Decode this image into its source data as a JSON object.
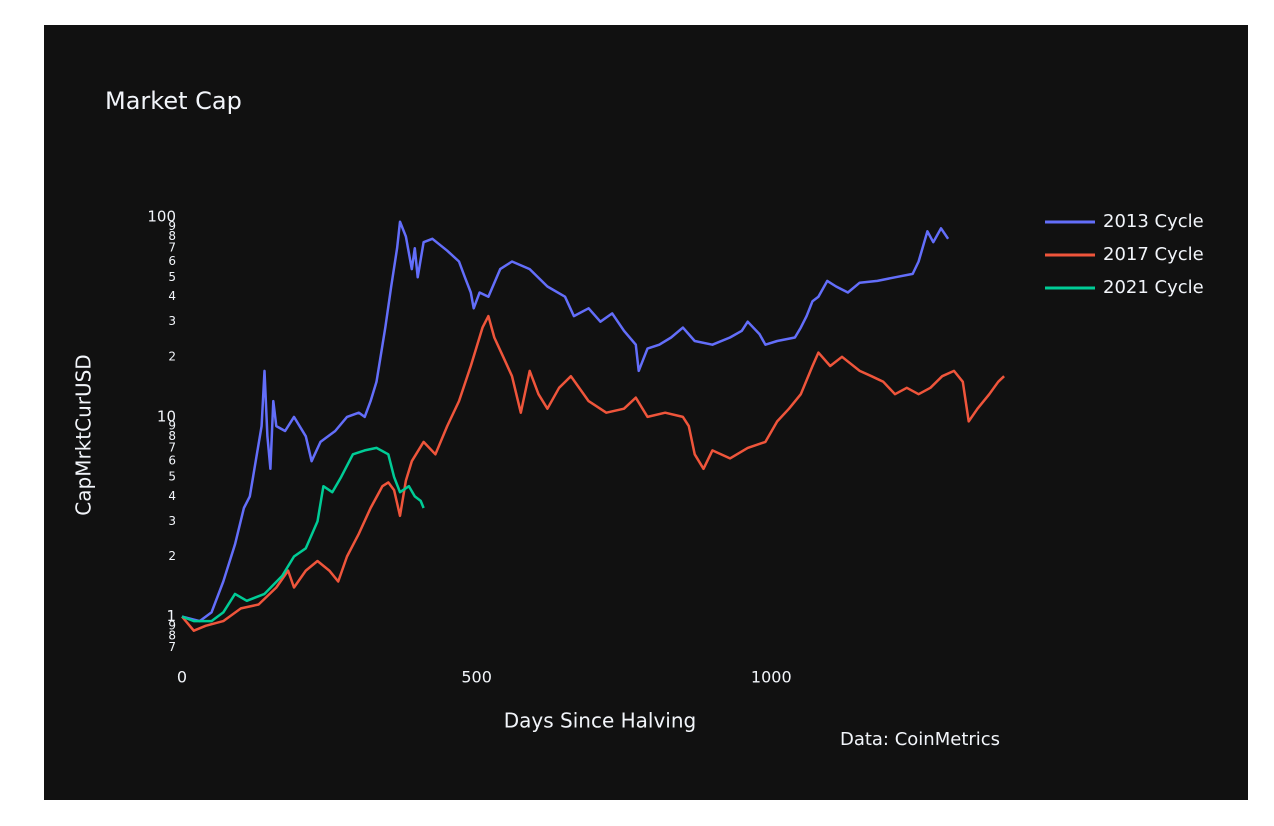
{
  "chart_data": {
    "type": "line",
    "title": "Market Cap",
    "xlabel": "Days Since Halving",
    "ylabel": "CapMrktCurUSD",
    "annotation": "Data: CoinMetrics",
    "log_y": true,
    "grid": false,
    "legend": "upper right",
    "xlim": [
      0,
      1400
    ],
    "xticks": [
      0,
      500,
      1000
    ],
    "ylim": [
      0.65,
      105
    ],
    "yticks": [
      {
        "value": 0.7,
        "label": "7"
      },
      {
        "value": 0.8,
        "label": "8"
      },
      {
        "value": 0.9,
        "label": "9"
      },
      1,
      2,
      3,
      4,
      5,
      6,
      7,
      8,
      9,
      10,
      {
        "value": 20,
        "label": "2"
      },
      {
        "value": 30,
        "label": "3"
      },
      {
        "value": 40,
        "label": "4"
      },
      {
        "value": 50,
        "label": "5"
      },
      {
        "value": 60,
        "label": "6"
      },
      {
        "value": 70,
        "label": "7"
      },
      {
        "value": 80,
        "label": "8"
      },
      {
        "value": 90,
        "label": "9"
      },
      100
    ],
    "series": [
      {
        "name": "2013 Cycle",
        "color": "#636efa",
        "x": [
          0,
          30,
          50,
          70,
          90,
          105,
          115,
          125,
          135,
          140,
          145,
          150,
          155,
          160,
          175,
          190,
          210,
          220,
          235,
          260,
          280,
          300,
          310,
          320,
          330,
          345,
          355,
          365,
          370,
          380,
          390,
          395,
          400,
          410,
          425,
          450,
          470,
          480,
          490,
          495,
          505,
          520,
          540,
          560,
          590,
          620,
          650,
          665,
          690,
          710,
          730,
          750,
          770,
          775,
          790,
          810,
          830,
          850,
          870,
          900,
          930,
          950,
          960,
          980,
          990,
          1010,
          1040,
          1050,
          1060,
          1070,
          1080,
          1095,
          1110,
          1130,
          1150,
          1180,
          1210,
          1240,
          1250,
          1265,
          1275,
          1288,
          1300
        ],
        "values": [
          1,
          0.95,
          1.05,
          1.5,
          2.3,
          3.5,
          4,
          6,
          9,
          17,
          8,
          5.5,
          12,
          9,
          8.5,
          10,
          8,
          6,
          7.5,
          8.5,
          10,
          10.5,
          10,
          12,
          15,
          28,
          45,
          70,
          95,
          80,
          55,
          70,
          50,
          75,
          78,
          68,
          60,
          50,
          42,
          35,
          42,
          40,
          55,
          60,
          55,
          45,
          40,
          32,
          35,
          30,
          33,
          27,
          23,
          17,
          22,
          23,
          25,
          28,
          24,
          23,
          25,
          27,
          30,
          26,
          23,
          24,
          25,
          28,
          32,
          38,
          40,
          48,
          45,
          42,
          47,
          48,
          50,
          52,
          60,
          85,
          75,
          88,
          78
        ]
      },
      {
        "name": "2017 Cycle",
        "color": "#ef553b",
        "x": [
          0,
          20,
          40,
          70,
          100,
          130,
          160,
          180,
          190,
          210,
          230,
          250,
          265,
          280,
          300,
          320,
          340,
          350,
          360,
          370,
          380,
          390,
          410,
          430,
          450,
          470,
          490,
          510,
          520,
          530,
          545,
          560,
          575,
          590,
          605,
          620,
          640,
          660,
          690,
          720,
          750,
          770,
          790,
          820,
          850,
          860,
          870,
          885,
          900,
          930,
          960,
          990,
          1010,
          1030,
          1050,
          1070,
          1080,
          1100,
          1120,
          1150,
          1170,
          1190,
          1210,
          1230,
          1250,
          1270,
          1290,
          1310,
          1325,
          1335,
          1350,
          1370,
          1385,
          1395
        ],
        "values": [
          1,
          0.85,
          0.9,
          0.95,
          1.1,
          1.15,
          1.4,
          1.7,
          1.4,
          1.7,
          1.9,
          1.7,
          1.5,
          2,
          2.6,
          3.5,
          4.5,
          4.7,
          4.3,
          3.2,
          4.8,
          6,
          7.5,
          6.5,
          9,
          12,
          18,
          28,
          32,
          25,
          20,
          16,
          10.5,
          17,
          13,
          11,
          14,
          16,
          12,
          10.5,
          11,
          12.5,
          10,
          10.5,
          10,
          9,
          6.5,
          5.5,
          6.8,
          6.2,
          7,
          7.5,
          9.5,
          11,
          13,
          18,
          21,
          18,
          20,
          17,
          16,
          15,
          13,
          14,
          13,
          14,
          16,
          17,
          15,
          9.5,
          11,
          13,
          15,
          16
        ]
      },
      {
        "name": "2021 Cycle",
        "color": "#00cc96",
        "x": [
          0,
          20,
          50,
          70,
          90,
          110,
          140,
          170,
          190,
          210,
          230,
          240,
          255,
          270,
          290,
          310,
          330,
          350,
          360,
          370,
          385,
          395,
          405,
          410
        ],
        "values": [
          1,
          0.95,
          0.95,
          1.05,
          1.3,
          1.2,
          1.3,
          1.6,
          2,
          2.2,
          3,
          4.5,
          4.2,
          5,
          6.5,
          6.8,
          7,
          6.5,
          5,
          4.2,
          4.5,
          4,
          3.8,
          3.5
        ]
      }
    ]
  }
}
